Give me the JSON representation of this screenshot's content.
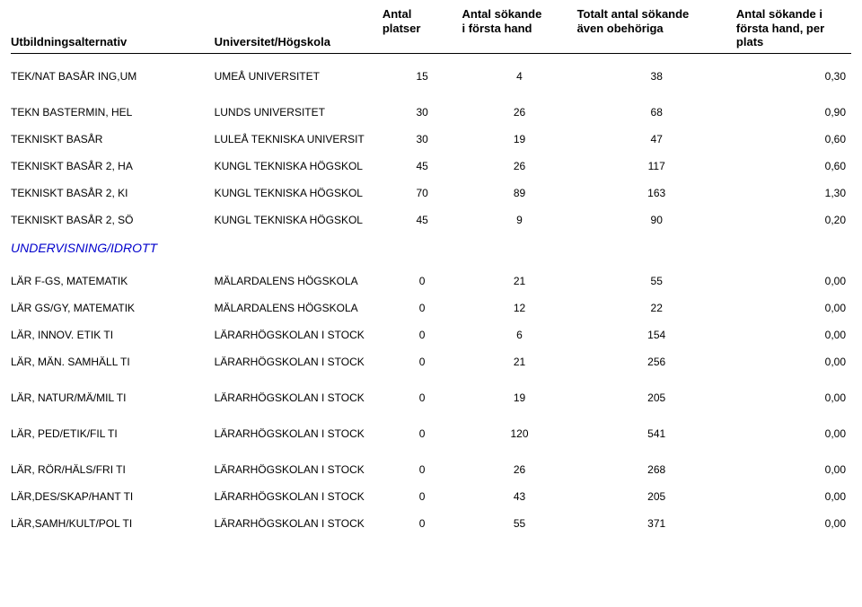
{
  "header": {
    "col1": "Utbildningsalternativ",
    "col2": "Universitet/Högskola",
    "col3_l1": "Antal",
    "col3_l2": "platser",
    "col4_l1": "Antal sökande",
    "col4_l2": "i första hand",
    "col5_l1": "Totalt antal sökande",
    "col5_l2": "även obehöriga",
    "col6_l1": "Antal sökande i",
    "col6_l2": "första hand, per plats"
  },
  "section_title": "UNDERVISNING/IDROTT",
  "rows1": [
    {
      "c1": "TEK/NAT BASÅR ING,UM",
      "c2": "UMEÅ UNIVERSITET",
      "c3": "15",
      "c4": "4",
      "c5": "38",
      "c6": "0,30",
      "gap": true
    },
    {
      "c1": "TEKN BASTERMIN, HEL",
      "c2": "LUNDS UNIVERSITET",
      "c3": "30",
      "c4": "26",
      "c5": "68",
      "c6": "0,90"
    },
    {
      "c1": "TEKNISKT BASÅR",
      "c2": "LULEÅ TEKNISKA UNIVERSIT",
      "c3": "30",
      "c4": "19",
      "c5": "47",
      "c6": "0,60"
    },
    {
      "c1": "TEKNISKT BASÅR 2, HA",
      "c2": "KUNGL TEKNISKA HÖGSKOL",
      "c3": "45",
      "c4": "26",
      "c5": "117",
      "c6": "0,60"
    },
    {
      "c1": "TEKNISKT BASÅR 2, KI",
      "c2": "KUNGL TEKNISKA HÖGSKOL",
      "c3": "70",
      "c4": "89",
      "c5": "163",
      "c6": "1,30"
    },
    {
      "c1": "TEKNISKT BASÅR 2, SÖ",
      "c2": "KUNGL TEKNISKA HÖGSKOL",
      "c3": "45",
      "c4": "9",
      "c5": "90",
      "c6": "0,20"
    }
  ],
  "rows2": [
    {
      "c1": "LÄR F-GS, MATEMATIK",
      "c2": "MÄLARDALENS HÖGSKOLA",
      "c3": "0",
      "c4": "21",
      "c5": "55",
      "c6": "0,00"
    },
    {
      "c1": "LÄR GS/GY, MATEMATIK",
      "c2": "MÄLARDALENS HÖGSKOLA",
      "c3": "0",
      "c4": "12",
      "c5": "22",
      "c6": "0,00"
    },
    {
      "c1": "LÄR, INNOV. ETIK  TI",
      "c2": "LÄRARHÖGSKOLAN I STOCK",
      "c3": "0",
      "c4": "6",
      "c5": "154",
      "c6": "0,00"
    },
    {
      "c1": "LÄR, MÄN. SAMHÄLL TI",
      "c2": "LÄRARHÖGSKOLAN I STOCK",
      "c3": "0",
      "c4": "21",
      "c5": "256",
      "c6": "0,00",
      "gap": true
    },
    {
      "c1": "LÄR, NATUR/MÄ/MIL TI",
      "c2": "LÄRARHÖGSKOLAN I STOCK",
      "c3": "0",
      "c4": "19",
      "c5": "205",
      "c6": "0,00",
      "gap": true
    },
    {
      "c1": "LÄR, PED/ETIK/FIL TI",
      "c2": "LÄRARHÖGSKOLAN I STOCK",
      "c3": "0",
      "c4": "120",
      "c5": "541",
      "c6": "0,00",
      "gap": true
    },
    {
      "c1": "LÄR, RÖR/HÄLS/FRI TI",
      "c2": "LÄRARHÖGSKOLAN I STOCK",
      "c3": "0",
      "c4": "26",
      "c5": "268",
      "c6": "0,00"
    },
    {
      "c1": "LÄR,DES/SKAP/HANT TI",
      "c2": "LÄRARHÖGSKOLAN I STOCK",
      "c3": "0",
      "c4": "43",
      "c5": "205",
      "c6": "0,00"
    },
    {
      "c1": "LÄR,SAMH/KULT/POL TI",
      "c2": "LÄRARHÖGSKOLAN I STOCK",
      "c3": "0",
      "c4": "55",
      "c5": "371",
      "c6": "0,00"
    }
  ]
}
